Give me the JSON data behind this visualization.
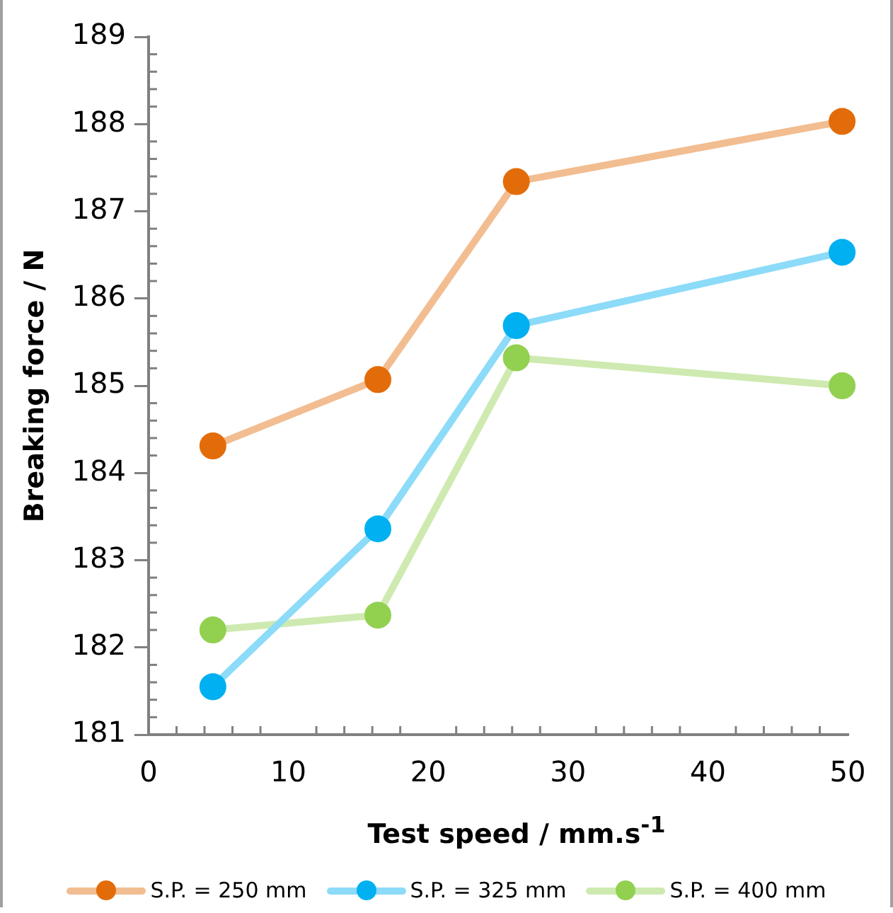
{
  "chart_data": {
    "type": "line",
    "xlabel": "Test speed / mm.s$^{-1}$",
    "ylabel": "Breaking force / N",
    "x": [
      4.6,
      16.4,
      26.3,
      49.6
    ],
    "series": [
      {
        "name": "S.P. = 250 mm",
        "color": "#e36c0a",
        "values": [
          184.31,
          185.07,
          187.34,
          188.03
        ]
      },
      {
        "name": "S.P. = 325 mm",
        "color": "#00b0f0",
        "values": [
          181.55,
          183.36,
          185.69,
          186.53
        ]
      },
      {
        "name": "S.P. = 400 mm",
        "color": "#92d050",
        "values": [
          182.2,
          182.37,
          185.32,
          185.0
        ]
      }
    ],
    "xlim": [
      0,
      50
    ],
    "xticks": [
      0,
      10,
      20,
      30,
      40,
      50
    ],
    "ylim": [
      181,
      189
    ],
    "yticks": [
      181,
      182,
      183,
      184,
      185,
      186,
      187,
      188,
      189
    ],
    "grid": false,
    "legend": "bottom",
    "marker": "circle",
    "line_style": "solid"
  }
}
